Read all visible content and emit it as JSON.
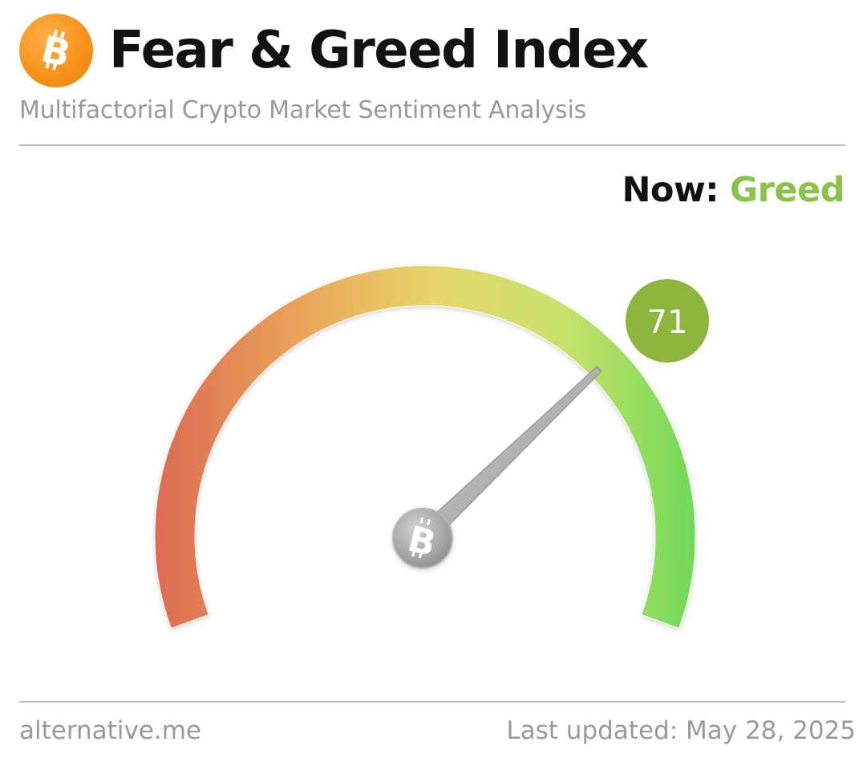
{
  "header": {
    "logo_icon": "bitcoin-icon",
    "title": "Fear & Greed Index",
    "subtitle": "Multifactorial Crypto Market Sentiment Analysis"
  },
  "status": {
    "label": "Now:",
    "value": "Greed",
    "color": "#8bc34a"
  },
  "gauge": {
    "value": "71",
    "min": 0,
    "max": 100,
    "badge_color": "#8db53c",
    "hub_icon": "bitcoin-icon",
    "colors": [
      "#dd6a52",
      "#e9a75a",
      "#e8d66a",
      "#c6e26a",
      "#6fd957"
    ]
  },
  "footer": {
    "source": "alternative.me",
    "updated": "Last updated: May 28, 2025"
  }
}
